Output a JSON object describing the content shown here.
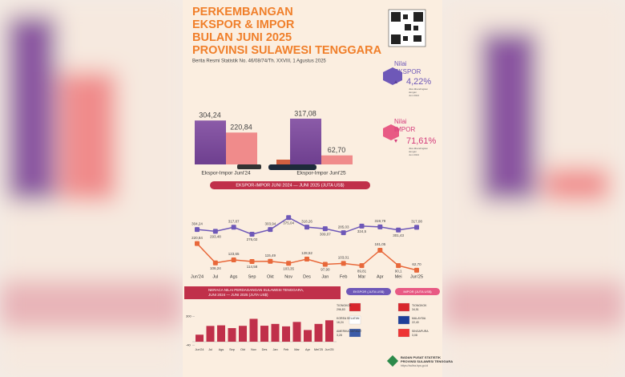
{
  "header": {
    "title_lines": [
      "PERKEMBANGAN",
      "EKSPOR & IMPOR",
      "BULAN JUNI 2025",
      "PROVINSI SULAWESI TENGGARA"
    ],
    "subtitle": "Berita Resmi Statistik No. 46/08/74/Th. XXVIII, 1 Agustus 2025"
  },
  "summary": {
    "export_title": [
      "Nilai",
      "EKSPOR"
    ],
    "export_change": {
      "value": 4.22,
      "label": "4,22%"
    },
    "import_title": [
      "Nilai",
      "IMPOR"
    ],
    "import_change": {
      "value": 71.61,
      "label": "71,61%"
    },
    "note": [
      "Jika dibandingkan",
      "dengan",
      "Juni 2024"
    ]
  },
  "comparison": {
    "groups": [
      {
        "label": "Ekspor-Impor Juni'24",
        "export": 304.24,
        "export_label": "304,24",
        "import": 220.84,
        "import_label": "220,84"
      },
      {
        "label": "Ekspor-Impor Juni'25",
        "export": 317.08,
        "export_label": "317,08",
        "import": 62.7,
        "import_label": "62,70"
      }
    ]
  },
  "trend": {
    "banner": "EKSPOR-IMPOR JUNI 2024 — JUNI 2025 (JUTA US$)",
    "categories": [
      "Jun'24",
      "Jul",
      "Ags",
      "Sep",
      "Okt",
      "Nov",
      "Des",
      "Jan",
      "Feb",
      "Mar",
      "Apr",
      "Mei",
      "Jun'25"
    ],
    "export_values": [
      304.24,
      293.48,
      317.87,
      276.02,
      303.94,
      375.04,
      318.26,
      309.07,
      285.03,
      324.5,
      319.79,
      301.43,
      317.08
    ],
    "export_labels": [
      "304,24",
      "293,48",
      "317,87",
      "276,02",
      "303,94",
      "375,04",
      "318,26",
      "309,07",
      "285,03",
      "324,5",
      "319,79",
      "301,43",
      "317,08"
    ],
    "import_values": [
      220.84,
      106.24,
      123.65,
      114.58,
      115.49,
      103.35,
      128.52,
      97.9,
      103.01,
      89.81,
      181.05,
      90.1,
      62.7
    ],
    "import_labels": [
      "220,84",
      "106,24",
      "123,65",
      "114,58",
      "115,49",
      "103,35",
      "128,52",
      "97,90",
      "103,01",
      "89,81",
      "181,05",
      "90,1",
      "62,70"
    ]
  },
  "balance": {
    "banner_lines": [
      "NERACA NILAI PERDAGANGAN SULAWESI TENGGARA,",
      "JUNI 2024 — JUNI 2025 (JUTA US$)"
    ],
    "categories": [
      "Jun'24",
      "Jul",
      "Ags",
      "Sep",
      "Okt",
      "Nov",
      "Des",
      "Jan",
      "Feb",
      "Mar",
      "Apr",
      "Mei'25",
      "Jun'25"
    ],
    "values": [
      83.4,
      187.24,
      194.22,
      161.44,
      188.45,
      271.69,
      189.74,
      211.17,
      182.02,
      234.69,
      138.74,
      211.33,
      254.38
    ],
    "yticks": [
      300,
      -40
    ]
  },
  "partners": {
    "export_header": "EKSPOR (JUTA US$)",
    "import_header": "IMPOR (JUTA US$)",
    "export": [
      {
        "name": "TIONGKOK",
        "value": {
          "value": 296.83,
          "label": "296,83"
        }
      },
      {
        "name": "KOREA SELATAN",
        "value": {
          "value": 16.24,
          "label": "16,24"
        }
      },
      {
        "name": "AMERIKA SERIKAT",
        "value": {
          "value": 3.28,
          "label": "3,28"
        }
      }
    ],
    "import": [
      {
        "name": "TIONGKOK",
        "value": {
          "value": 34.51,
          "label": "34,51"
        }
      },
      {
        "name": "MALAYSIA",
        "value": {
          "value": 22.4,
          "label": "22,40"
        }
      },
      {
        "name": "SINGAPURA",
        "value": {
          "value": 3.08,
          "label": "3,08"
        }
      }
    ]
  },
  "footer": {
    "org_lines": [
      "BADAN PUSAT STATISTIK",
      "PROVINSI SULAWESI TENGGARA"
    ],
    "url": "https://sultra.bps.go.id"
  }
}
